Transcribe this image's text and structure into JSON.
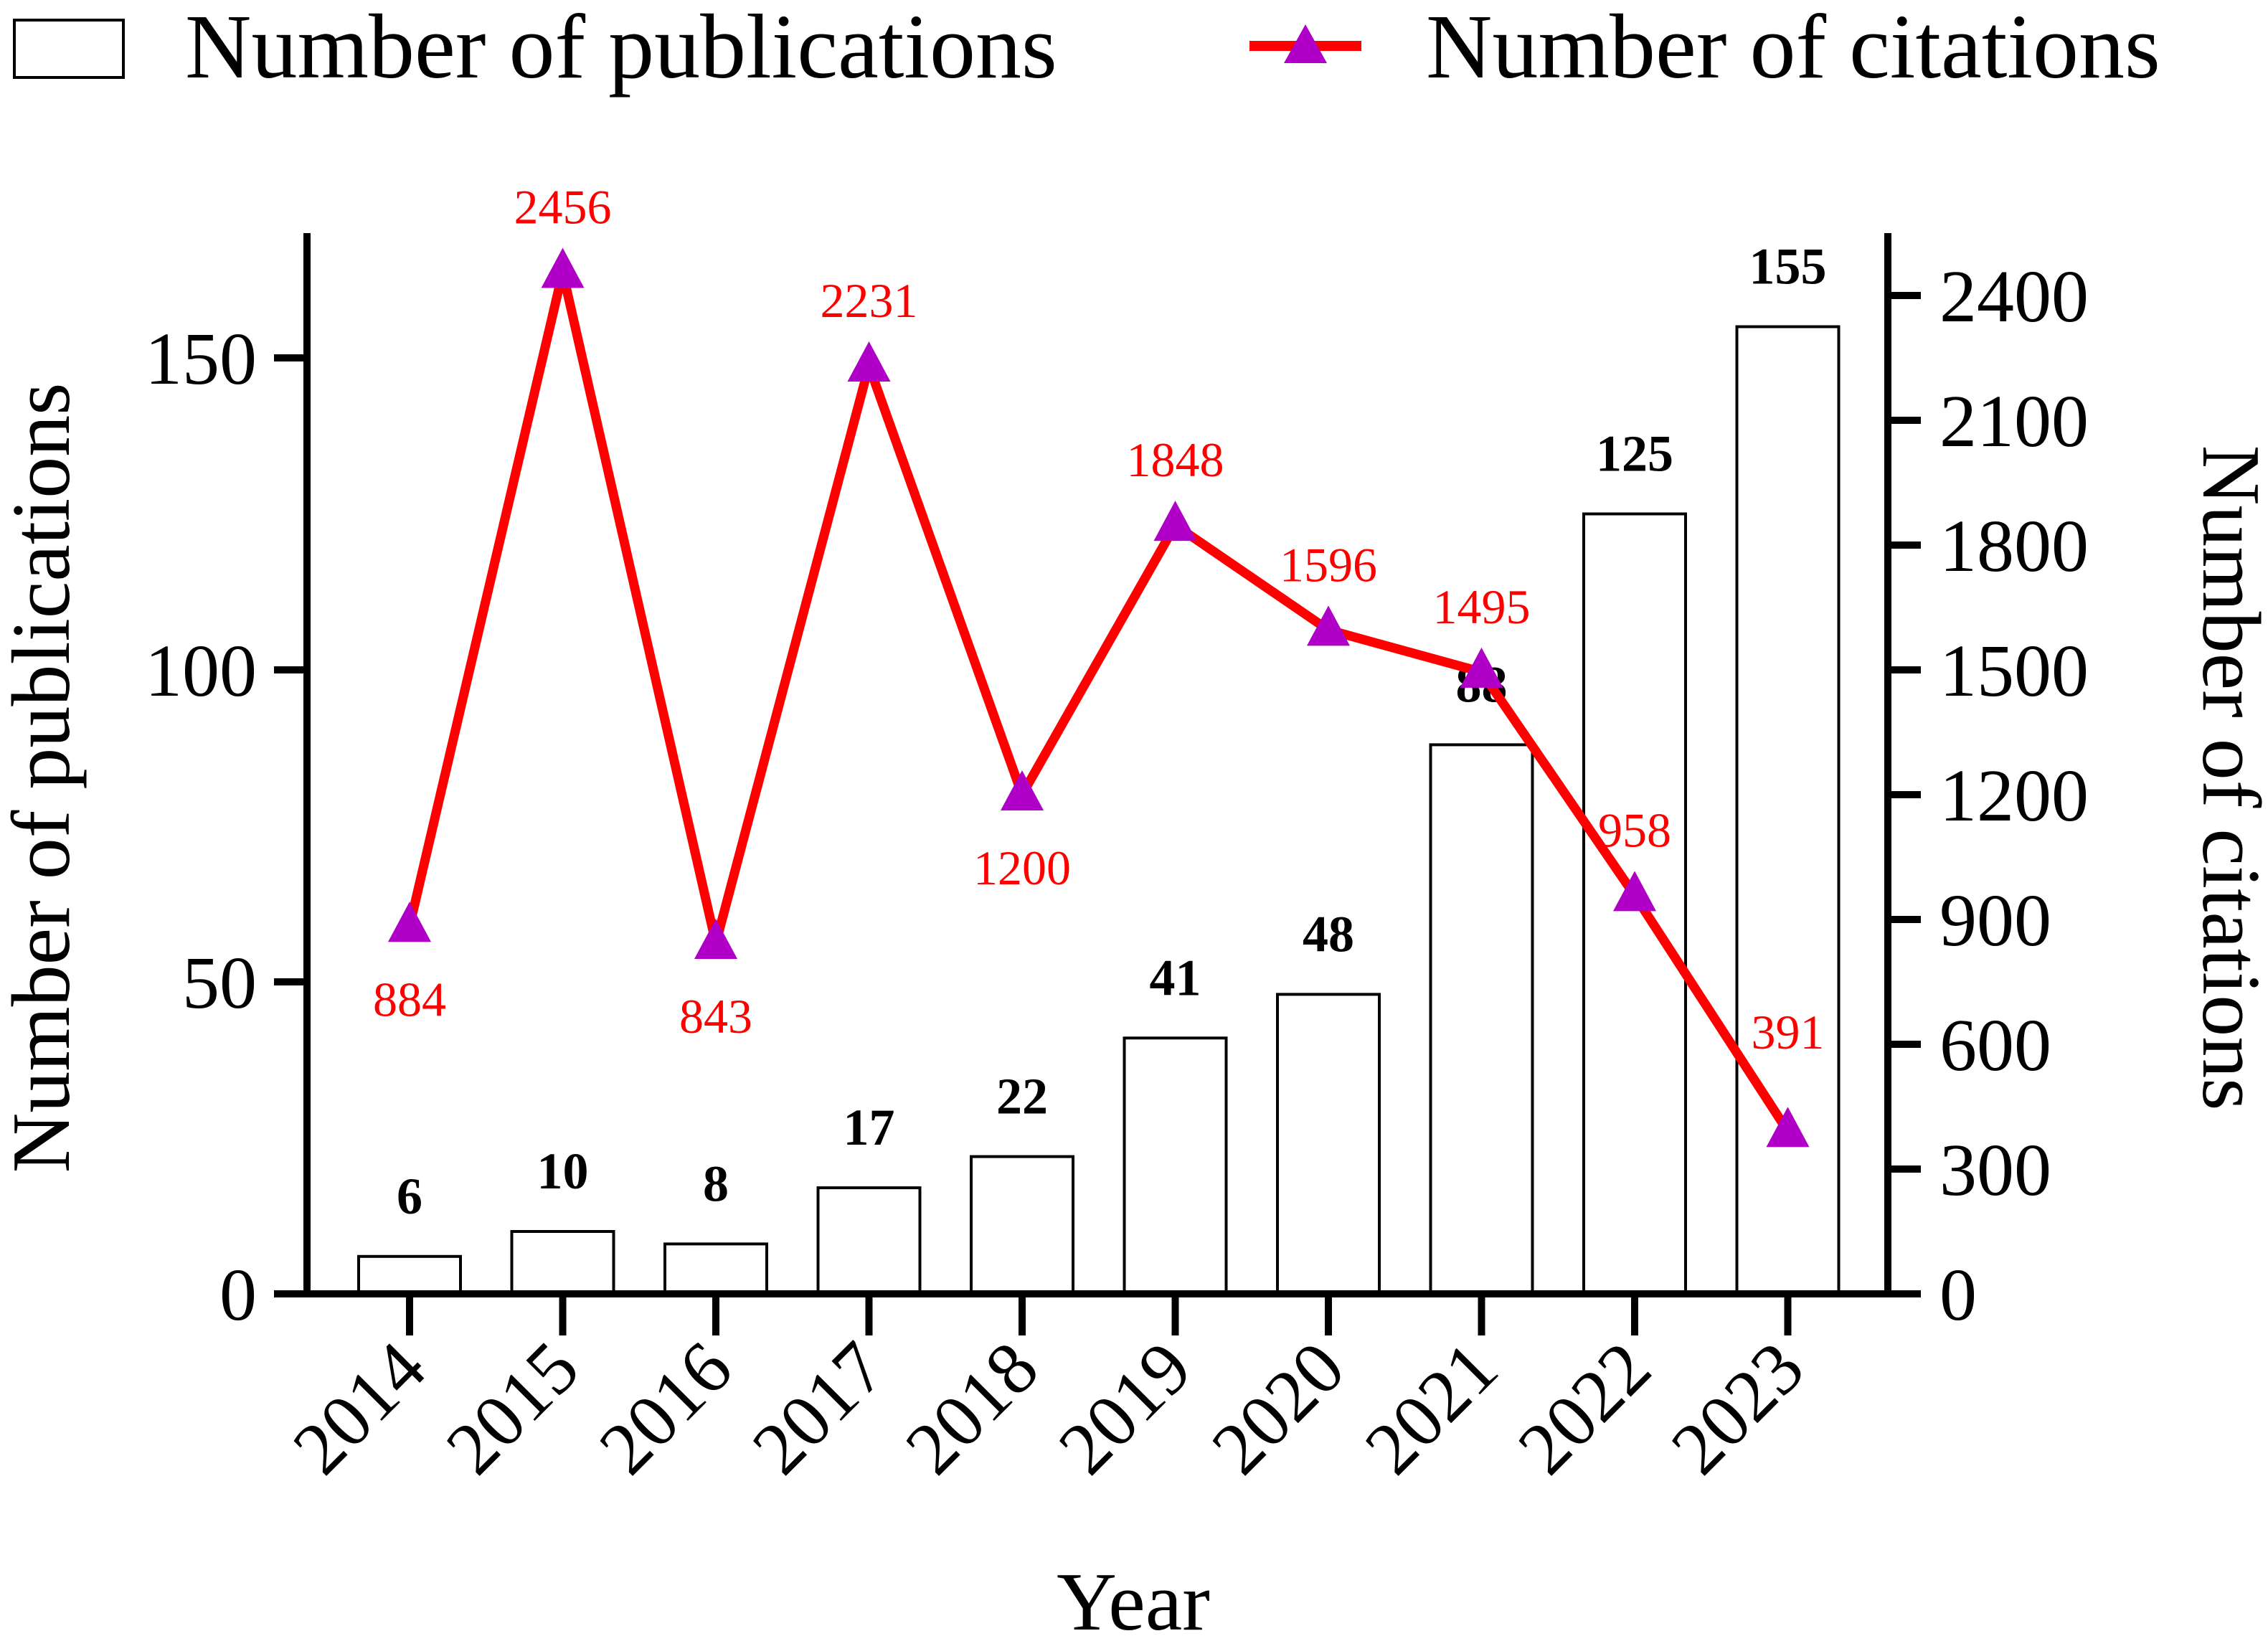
{
  "chart_data": {
    "type": "bar",
    "categories": [
      "2014",
      "2015",
      "2016",
      "2017",
      "2018",
      "2019",
      "2020",
      "2021",
      "2022",
      "2023"
    ],
    "xlabel": "Year",
    "series": [
      {
        "name": "Number of publications",
        "type": "bar",
        "axis": "left",
        "values": [
          6,
          10,
          8,
          17,
          22,
          41,
          48,
          88,
          125,
          155
        ],
        "fill": "#ffffff",
        "stroke": "#000000"
      },
      {
        "name": "Number of citations",
        "type": "line",
        "axis": "right",
        "values": [
          884,
          2456,
          843,
          2231,
          1200,
          1848,
          1596,
          1495,
          958,
          391
        ],
        "line_color": "#ff0000",
        "marker": "triangle",
        "marker_color": "#b000c8",
        "label_color": "#ff0000"
      }
    ],
    "left_axis": {
      "label": "Number of publications",
      "ylim": [
        0,
        170
      ],
      "ticks": [
        "0",
        "50",
        "100",
        "150"
      ]
    },
    "right_axis": {
      "label": "Number of citations",
      "ylim": [
        0,
        2550
      ],
      "ticks": [
        "0",
        "300",
        "600",
        "900",
        "1200",
        "1500",
        "1800",
        "2100",
        "2400"
      ]
    },
    "legend": {
      "position": "top",
      "entries": [
        "Number of publications",
        "Number of citations"
      ]
    },
    "grid": false
  }
}
